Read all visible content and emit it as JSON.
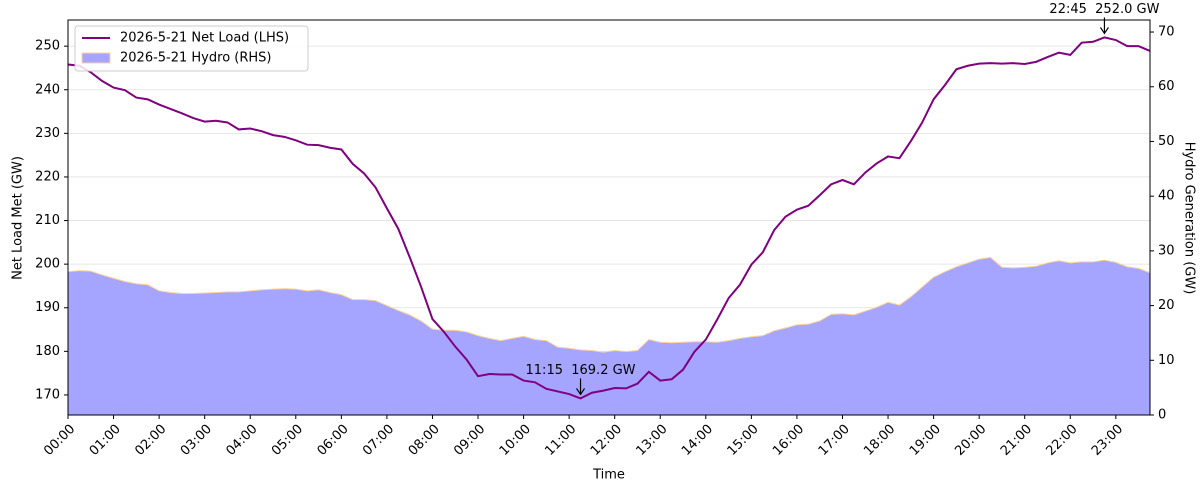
{
  "chart_data": {
    "type": "line",
    "x_label": "Time",
    "y_label": "Net Load Met (GW)",
    "y2_label": "Hydro Generation (GW)",
    "x": [
      "00:00",
      "00:15",
      "00:30",
      "00:45",
      "01:00",
      "01:15",
      "01:30",
      "01:45",
      "02:00",
      "02:15",
      "02:30",
      "02:45",
      "03:00",
      "03:15",
      "03:30",
      "03:45",
      "04:00",
      "04:15",
      "04:30",
      "04:45",
      "05:00",
      "05:15",
      "05:30",
      "05:45",
      "06:00",
      "06:15",
      "06:30",
      "06:45",
      "07:00",
      "07:15",
      "07:30",
      "07:45",
      "08:00",
      "08:15",
      "08:30",
      "08:45",
      "09:00",
      "09:15",
      "09:30",
      "09:45",
      "10:00",
      "10:15",
      "10:30",
      "10:45",
      "11:00",
      "11:15",
      "11:30",
      "11:45",
      "12:00",
      "12:15",
      "12:30",
      "12:45",
      "13:00",
      "13:15",
      "13:30",
      "13:45",
      "14:00",
      "14:15",
      "14:30",
      "14:45",
      "15:00",
      "15:15",
      "15:30",
      "15:45",
      "16:00",
      "16:15",
      "16:30",
      "16:45",
      "17:00",
      "17:15",
      "17:30",
      "17:45",
      "18:00",
      "18:15",
      "18:30",
      "18:45",
      "19:00",
      "19:15",
      "19:30",
      "19:45",
      "20:00",
      "20:15",
      "20:30",
      "20:45",
      "21:00",
      "21:15",
      "21:30",
      "21:45",
      "22:00",
      "22:15",
      "22:30",
      "22:45",
      "23:00",
      "23:15",
      "23:30",
      "23:45"
    ],
    "xticks": [
      "00:00",
      "01:00",
      "02:00",
      "03:00",
      "04:00",
      "05:00",
      "06:00",
      "07:00",
      "08:00",
      "09:00",
      "10:00",
      "11:00",
      "12:00",
      "13:00",
      "14:00",
      "15:00",
      "16:00",
      "17:00",
      "18:00",
      "19:00",
      "20:00",
      "21:00",
      "22:00",
      "23:00"
    ],
    "ylim": [
      165.4,
      256.0
    ],
    "yticks": [
      170,
      180,
      190,
      200,
      210,
      220,
      230,
      240,
      250
    ],
    "y2lim": [
      0,
      72.2
    ],
    "y2ticks": [
      0,
      10,
      20,
      30,
      40,
      50,
      60,
      70
    ],
    "grid": true,
    "legend": "upper left",
    "series": [
      {
        "name": "2026-5-21 Net Load (LHS)",
        "color": "#800080",
        "kind": "line",
        "values": [
          245.8,
          245.5,
          244.0,
          242.0,
          240.5,
          239.9,
          238.2,
          237.8,
          236.6,
          235.6,
          234.6,
          233.5,
          232.7,
          232.9,
          232.5,
          230.9,
          231.1,
          230.5,
          229.6,
          229.2,
          228.4,
          227.4,
          227.3,
          226.7,
          226.3,
          223.0,
          220.8,
          217.6,
          212.8,
          208.1,
          201.6,
          194.8,
          187.4,
          184.5,
          181.1,
          178.1,
          174.3,
          174.8,
          174.7,
          174.7,
          173.3,
          172.9,
          171.4,
          170.8,
          170.2,
          169.2,
          170.5,
          171.0,
          171.6,
          171.5,
          172.6,
          175.3,
          173.3,
          173.6,
          175.8,
          179.9,
          182.7,
          187.3,
          192.2,
          195.3,
          199.9,
          202.7,
          207.8,
          210.9,
          212.5,
          213.4,
          215.8,
          218.3,
          219.3,
          218.3,
          221.0,
          223.1,
          224.7,
          224.3,
          228.2,
          232.5,
          237.8,
          241.1,
          244.7,
          245.5,
          246.0,
          246.1,
          246.0,
          246.1,
          245.9,
          246.4,
          247.5,
          248.5,
          248.0,
          250.8,
          251.0,
          252.0,
          251.4,
          250.0,
          250.0,
          248.9
        ]
      },
      {
        "name": "2026-5-21 Hydro (RHS)",
        "color": "#a5a5ff",
        "edge_color": "#ffd39b",
        "kind": "area",
        "axis": "y2",
        "values": [
          26.2,
          26.4,
          26.3,
          25.6,
          25.0,
          24.4,
          24.0,
          23.8,
          22.7,
          22.4,
          22.2,
          22.2,
          22.3,
          22.4,
          22.5,
          22.5,
          22.7,
          22.9,
          23.0,
          23.1,
          23.0,
          22.7,
          22.9,
          22.4,
          22.0,
          21.1,
          21.1,
          20.9,
          20.0,
          19.1,
          18.3,
          17.2,
          15.7,
          15.5,
          15.5,
          15.2,
          14.5,
          14.0,
          13.6,
          14.0,
          14.4,
          13.8,
          13.6,
          12.4,
          12.2,
          11.9,
          11.8,
          11.5,
          11.8,
          11.6,
          11.8,
          13.8,
          13.3,
          13.2,
          13.3,
          13.4,
          13.4,
          13.3,
          13.6,
          14.0,
          14.3,
          14.5,
          15.4,
          15.9,
          16.5,
          16.6,
          17.2,
          18.4,
          18.5,
          18.3,
          19.0,
          19.7,
          20.6,
          20.1,
          21.6,
          23.4,
          25.2,
          26.2,
          27.1,
          27.8,
          28.5,
          28.8,
          27.0,
          26.9,
          27.0,
          27.2,
          27.8,
          28.2,
          27.8,
          28.0,
          28.0,
          28.3,
          27.9,
          27.1,
          26.8,
          26.0
        ]
      }
    ],
    "annotations": [
      {
        "text": "11:15  169.2 GW",
        "x": "11:15",
        "y": 169.2
      },
      {
        "text": "22:45  252.0 GW",
        "x": "22:45",
        "y": 252.0
      }
    ]
  }
}
